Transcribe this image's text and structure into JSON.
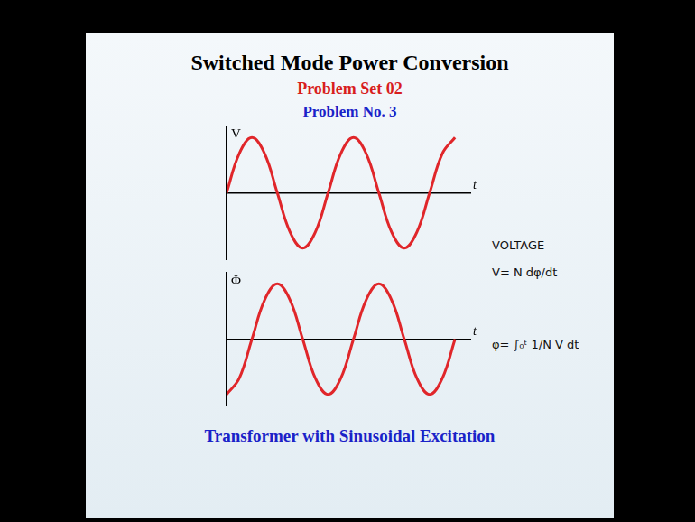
{
  "slide": {
    "title": "Switched Mode Power Conversion",
    "subtitle": "Problem Set 02",
    "problem": "Problem No. 3",
    "caption": "Transformer with Sinusoidal Excitation",
    "notes": [
      "VOLTAGE",
      "V= N dφ/dt",
      "φ= ∫₀ᵗ 1/N V dt"
    ]
  },
  "chart_data": [
    {
      "type": "line",
      "y_label": "V",
      "x_label": "t",
      "color": "#e0262a",
      "grid": false,
      "tick_labels": false,
      "xlim": [
        0,
        2.4
      ],
      "ylim": [
        -1.2,
        1.2
      ],
      "x": [
        0,
        0.125,
        0.25,
        0.375,
        0.5,
        0.625,
        0.75,
        0.875,
        1,
        1.125,
        1.25,
        1.375,
        1.5,
        1.625,
        1.75,
        1.875,
        2,
        2.125,
        2.25
      ],
      "values": [
        0,
        0.71,
        1,
        0.71,
        0,
        -0.71,
        -1,
        -0.71,
        0,
        0.71,
        1,
        0.71,
        0,
        -0.71,
        -1,
        -0.71,
        0,
        0.71,
        1
      ]
    },
    {
      "type": "line",
      "y_label": "Φ",
      "x_label": "t",
      "color": "#e0262a",
      "grid": false,
      "tick_labels": false,
      "xlim": [
        0,
        2.4
      ],
      "ylim": [
        -1.2,
        1.2
      ],
      "x": [
        0,
        0.125,
        0.25,
        0.375,
        0.5,
        0.625,
        0.75,
        0.875,
        1,
        1.125,
        1.25,
        1.375,
        1.5,
        1.625,
        1.75,
        1.875,
        2,
        2.125,
        2.25
      ],
      "values": [
        -1,
        -0.71,
        0,
        0.71,
        1,
        0.71,
        0,
        -0.71,
        -1,
        -0.71,
        0,
        0.71,
        1,
        0.71,
        0,
        -0.71,
        -1,
        -0.71,
        0
      ]
    }
  ]
}
